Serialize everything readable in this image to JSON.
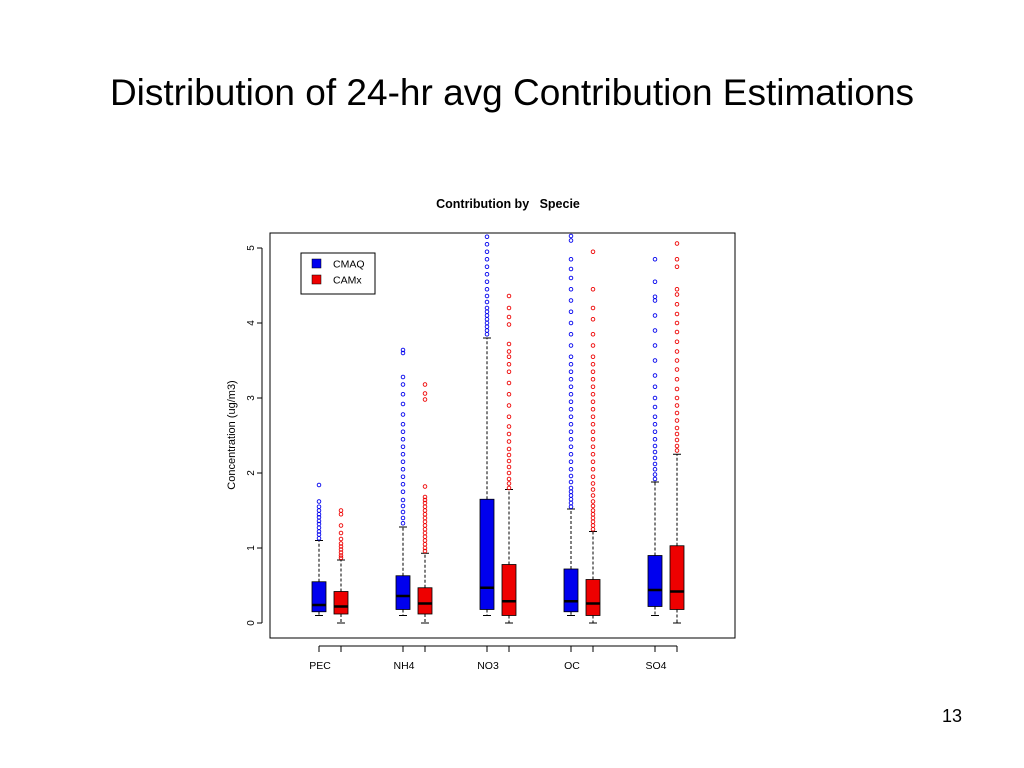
{
  "slide": {
    "title": "Distribution of 24-hr avg Contribution Estimations",
    "page_number": "13"
  },
  "colors": {
    "CMAQ": "#0000ee",
    "CAMx": "#ee0000"
  },
  "chart_data": {
    "type": "box",
    "title": "Contribution by   Specie",
    "xlabel": "",
    "ylabel": "Concentration (ug/m3)",
    "ylim": [
      0,
      5.2
    ],
    "yticks": [
      0,
      1,
      2,
      3,
      4,
      5
    ],
    "categories": [
      "PEC",
      "NH4",
      "NO3",
      "OC",
      "SO4"
    ],
    "legend": {
      "position": "top-left",
      "entries": [
        "CMAQ",
        "CAMx"
      ]
    },
    "series": [
      {
        "name": "CMAQ",
        "boxes": [
          {
            "whisker_low": 0.1,
            "q1": 0.15,
            "median": 0.24,
            "q3": 0.55,
            "whisker_high": 1.1,
            "outliers": [
              1.13,
              1.18,
              1.22,
              1.27,
              1.32,
              1.36,
              1.41,
              1.45,
              1.5,
              1.55,
              1.62,
              1.84
            ]
          },
          {
            "whisker_low": 0.1,
            "q1": 0.18,
            "median": 0.36,
            "q3": 0.63,
            "whisker_high": 1.28,
            "outliers": [
              1.33,
              1.4,
              1.48,
              1.56,
              1.64,
              1.75,
              1.85,
              1.95,
              2.05,
              2.15,
              2.25,
              2.35,
              2.45,
              2.55,
              2.65,
              2.78,
              2.92,
              3.05,
              3.18,
              3.28,
              3.6,
              3.64
            ]
          },
          {
            "whisker_low": 0.1,
            "q1": 0.18,
            "median": 0.47,
            "q3": 1.65,
            "whisker_high": 3.8,
            "outliers": [
              3.85,
              3.9,
              3.95,
              4.0,
              4.05,
              4.1,
              4.15,
              4.2,
              4.28,
              4.36,
              4.45,
              4.55,
              4.65,
              4.75,
              4.85,
              4.95,
              5.05,
              5.15
            ]
          },
          {
            "whisker_low": 0.1,
            "q1": 0.15,
            "median": 0.29,
            "q3": 0.72,
            "whisker_high": 1.52,
            "outliers": [
              1.55,
              1.6,
              1.65,
              1.7,
              1.75,
              1.8,
              1.88,
              1.96,
              2.05,
              2.15,
              2.25,
              2.35,
              2.45,
              2.55,
              2.65,
              2.75,
              2.85,
              2.95,
              3.05,
              3.15,
              3.25,
              3.35,
              3.45,
              3.55,
              3.7,
              3.85,
              4.0,
              4.15,
              4.3,
              4.45,
              4.6,
              4.72,
              4.85,
              5.1,
              5.16
            ]
          },
          {
            "whisker_low": 0.1,
            "q1": 0.22,
            "median": 0.44,
            "q3": 0.9,
            "whisker_high": 1.88,
            "outliers": [
              1.92,
              1.98,
              2.05,
              2.12,
              2.2,
              2.28,
              2.36,
              2.45,
              2.55,
              2.65,
              2.75,
              2.88,
              3.0,
              3.15,
              3.3,
              3.5,
              3.7,
              3.9,
              4.1,
              4.3,
              4.35,
              4.55,
              4.85
            ]
          }
        ]
      },
      {
        "name": "CAMx",
        "boxes": [
          {
            "whisker_low": 0.0,
            "q1": 0.12,
            "median": 0.22,
            "q3": 0.42,
            "whisker_high": 0.84,
            "outliers": [
              0.87,
              0.9,
              0.94,
              0.98,
              1.02,
              1.06,
              1.12,
              1.2,
              1.3,
              1.45,
              1.5
            ]
          },
          {
            "whisker_low": 0.0,
            "q1": 0.12,
            "median": 0.26,
            "q3": 0.47,
            "whisker_high": 0.93,
            "outliers": [
              0.96,
              1.0,
              1.05,
              1.1,
              1.15,
              1.2,
              1.25,
              1.3,
              1.35,
              1.4,
              1.45,
              1.5,
              1.55,
              1.6,
              1.64,
              1.68,
              1.82,
              2.98,
              3.06,
              3.18
            ]
          },
          {
            "whisker_low": 0.0,
            "q1": 0.1,
            "median": 0.29,
            "q3": 0.78,
            "whisker_high": 1.78,
            "outliers": [
              1.8,
              1.86,
              1.92,
              2.0,
              2.08,
              2.16,
              2.24,
              2.32,
              2.42,
              2.52,
              2.62,
              2.75,
              2.9,
              3.05,
              3.2,
              3.35,
              3.45,
              3.55,
              3.62,
              3.72,
              3.98,
              4.08,
              4.2,
              4.36
            ]
          },
          {
            "whisker_low": 0.0,
            "q1": 0.1,
            "median": 0.26,
            "q3": 0.58,
            "whisker_high": 1.22,
            "outliers": [
              1.25,
              1.3,
              1.35,
              1.4,
              1.45,
              1.5,
              1.56,
              1.62,
              1.7,
              1.78,
              1.86,
              1.95,
              2.05,
              2.15,
              2.25,
              2.35,
              2.45,
              2.55,
              2.65,
              2.75,
              2.85,
              2.95,
              3.05,
              3.15,
              3.25,
              3.35,
              3.45,
              3.55,
              3.7,
              3.85,
              4.05,
              4.2,
              4.45,
              4.95
            ]
          },
          {
            "whisker_low": 0.0,
            "q1": 0.18,
            "median": 0.42,
            "q3": 1.03,
            "whisker_high": 2.25,
            "outliers": [
              2.3,
              2.36,
              2.44,
              2.52,
              2.6,
              2.7,
              2.8,
              2.9,
              3.0,
              3.12,
              3.25,
              3.38,
              3.5,
              3.62,
              3.75,
              3.88,
              4.0,
              4.12,
              4.25,
              4.38,
              4.45,
              4.75,
              4.85,
              5.06
            ]
          }
        ]
      }
    ]
  }
}
